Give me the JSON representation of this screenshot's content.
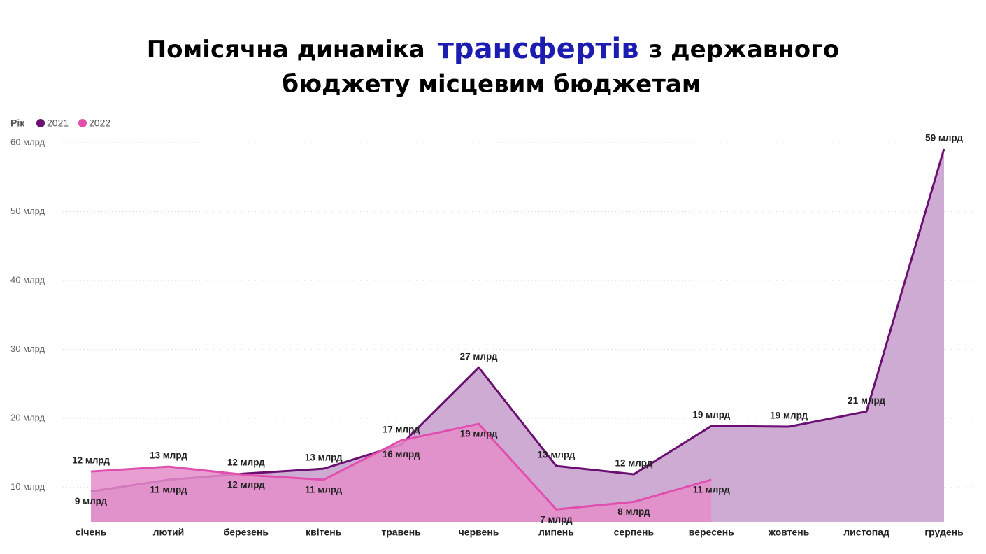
{
  "chart_data": {
    "type": "area",
    "title": [
      "Помісячна динаміка",
      "трансфертів",
      "з державного",
      "бюджету місцевим бюджетам"
    ],
    "legend_title": "Рік",
    "categories": [
      "січень",
      "лютий",
      "березень",
      "квітень",
      "травень",
      "червень",
      "липень",
      "серпень",
      "вересень",
      "жовтень",
      "листопад",
      "грудень"
    ],
    "series": [
      {
        "name": "2021",
        "color": "#6b0f73",
        "fill": "#c59ccb",
        "values": [
          9.4,
          11.1,
          12.0,
          12.7,
          16.2,
          27.4,
          13.1,
          11.9,
          18.9,
          18.8,
          21.0,
          59.1
        ],
        "value_labels": [
          "9 млрд",
          "11 млрд",
          "12 млрд",
          "13 млрд",
          "16 млрд",
          "27 млрд",
          "13 млрд",
          "12 млрд",
          "19 млрд",
          "19 млрд",
          "21 млрд",
          "59 млрд"
        ]
      },
      {
        "name": "2022",
        "color": "#e04fae",
        "fill": "#e58dc9",
        "values": [
          12.3,
          13.0,
          11.8,
          11.1,
          16.8,
          19.2,
          6.8,
          7.9,
          11.1,
          null,
          null,
          null
        ],
        "value_labels": [
          "12 млрд",
          "13 млрд",
          "12 млрд",
          "11 млрд",
          "17 млрд",
          "19 млрд",
          "7 млрд",
          "8 млрд",
          "11 млрд",
          null,
          null,
          null
        ]
      }
    ],
    "ylim": [
      5,
      60
    ],
    "yticks": [
      {
        "value": 10,
        "label": "10 млрд"
      },
      {
        "value": 20,
        "label": "20 млрд"
      },
      {
        "value": 30,
        "label": "30 млрд"
      },
      {
        "value": 40,
        "label": "40 млрд"
      },
      {
        "value": 50,
        "label": "50 млрд"
      },
      {
        "value": 60,
        "label": "60 млрд"
      }
    ],
    "grid": true
  }
}
